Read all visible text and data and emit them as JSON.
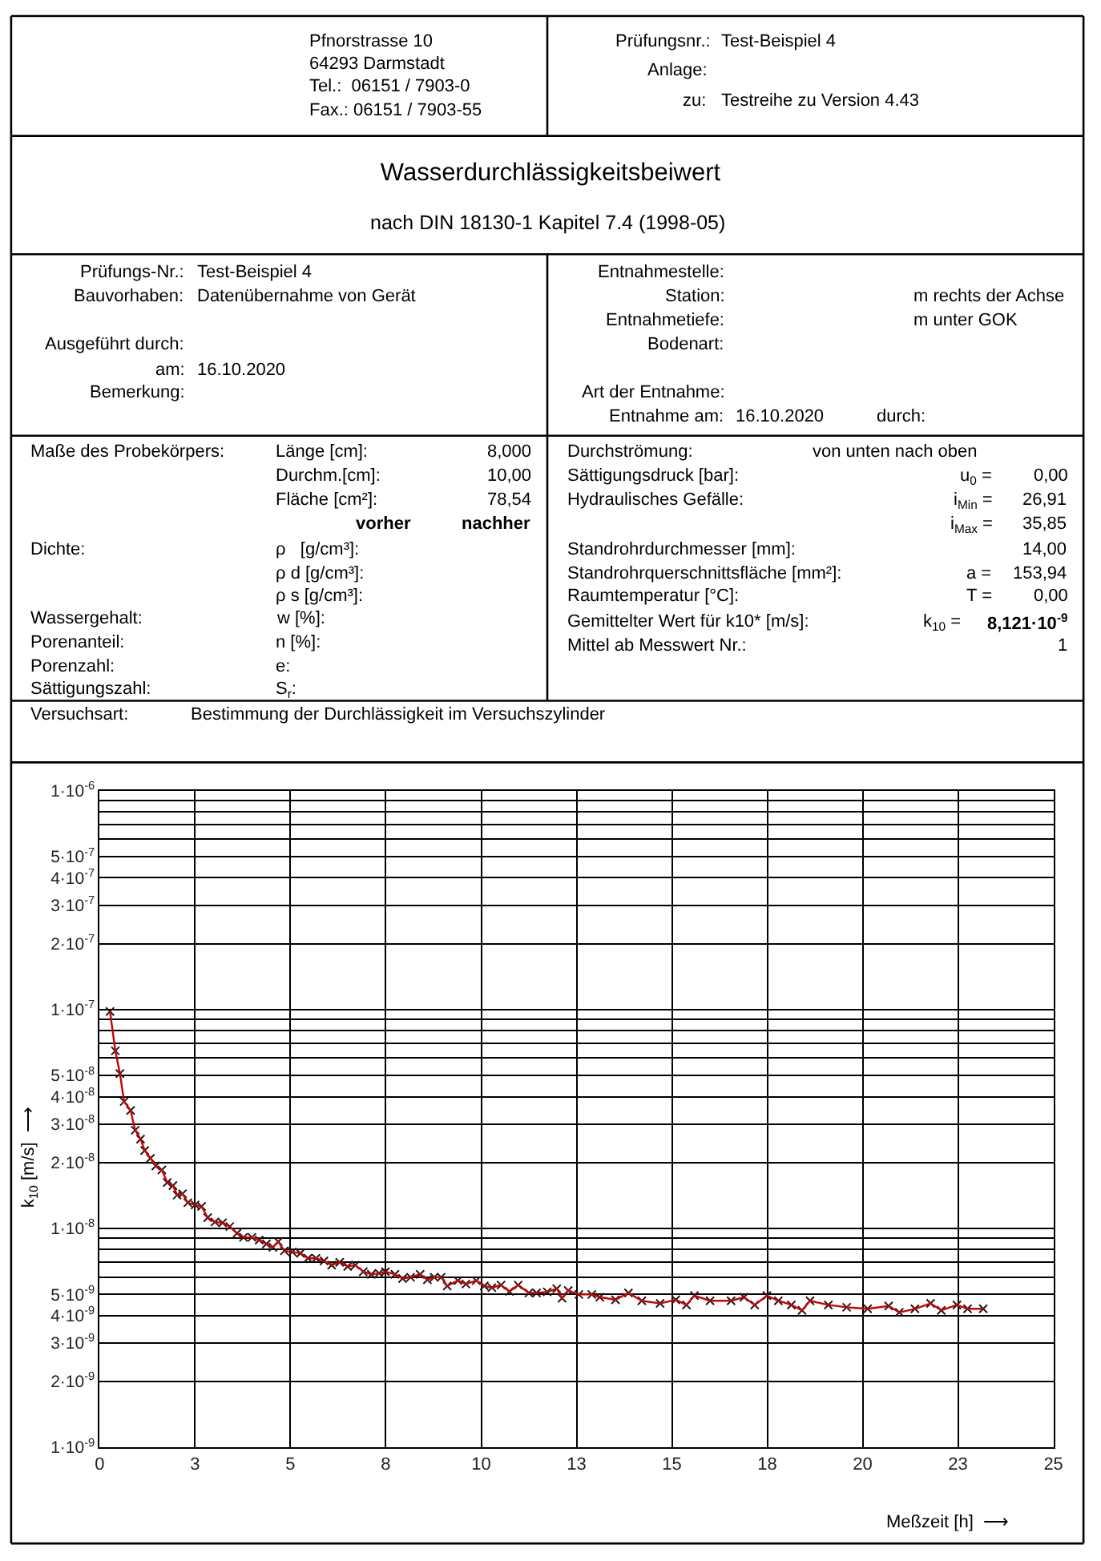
{
  "chart_data": {
    "type": "line",
    "title": "Wasserdurchlässigkeitsbeiwert",
    "subtitle": "nach DIN 18130-1 Kapitel 7.4 (1998-05)",
    "xlabel": "Meßzeit [h]  ⟶",
    "ylabel": "k$_{10}$ [m/s]  ⟶",
    "annotations": [
      "Pfnorstrasse 10",
      "64293 Darmstadt",
      "Tel.:  06151 / 7903-0",
      "Fax.: 06151 / 7903-55",
      "Prüfungsnr.:",
      "Test-Beispiel 4",
      "Anlage:",
      "zu:",
      "Testreihe zu Version 4.43",
      "Prüfungs-Nr.:",
      "Test-Beispiel 4",
      "Bauvorhaben:",
      "Datenübernahme von Gerät",
      "Ausgeführt durch:",
      "am:",
      "16.10.2020",
      "Bemerkung:",
      "Entnahmestelle:",
      "Station:",
      "m rechts der Achse",
      "Entnahmetiefe:",
      "m unter GOK",
      "Bodenart:",
      "Art der Entnahme:",
      "Entnahme am:",
      "16.10.2020",
      "durch:",
      "Maße des Probekörpers:",
      "Länge [cm]:",
      "8,000",
      "Durchm.[cm]:",
      "10,00",
      "Fläche [cm²]:",
      "78,54",
      "vorher",
      "nachher",
      "Dichte:",
      "ρ   [g/cm³]:",
      "ρ d [g/cm³]:",
      "ρ s [g/cm³]:",
      "Wassergehalt:",
      "w [%]:",
      "Porenanteil:",
      "n [%]:",
      "Porenzahl:",
      "e:",
      "Sättigungszahl:",
      "S$_{r}$:",
      "Durchströmung:",
      "von unten nach oben",
      "Sättigungsdruck [bar]:",
      "u$_{0}$ =",
      "0,00",
      "Hydraulisches Gefälle:",
      "i$_{Min}$ =",
      "26,91",
      "i$_{Max}$ =",
      "35,85",
      "Standrohrdurchmesser [mm]:",
      "14,00",
      "Standrohrquerschnittsfläche [mm²]:",
      "a =",
      "153,94",
      "Raumtemperatur [°C]:",
      "T =",
      "0,00",
      "Gemittelter Wert für k10* [m/s]:",
      "k$_{10}$ =",
      "8,121·10$^{-9}$",
      "Mittel ab Messwert Nr.:",
      "1",
      "Versuchsart:",
      "Bestimmung der Durchlässigkeit im Versuchszylinder"
    ],
    "xlim": [
      0,
      25
    ],
    "xticks": [
      0,
      {
        "value": 2.5,
        "label": "3"
      },
      5,
      {
        "value": 7.5,
        "label": "8"
      },
      10,
      {
        "value": 12.5,
        "label": "13"
      },
      15,
      {
        "value": 17.5,
        "label": "18"
      },
      20,
      {
        "value": 22.5,
        "label": "23"
      },
      25
    ],
    "ylim": [
      1e-09,
      1e-06
    ],
    "yticks": [
      {
        "value": 1e-09,
        "label": "1·10$^{-9}$"
      },
      {
        "value": 2e-09,
        "label": "2·10$^{-9}$"
      },
      {
        "value": 3e-09,
        "label": "3·10$^{-9}$"
      },
      {
        "value": 4e-09,
        "label": "4·10$^{-9}$"
      },
      {
        "value": 5e-09,
        "label": "5·10$^{-9}$"
      },
      {
        "value": 6e-09,
        "label": null
      },
      {
        "value": 7e-09,
        "label": null
      },
      {
        "value": 8e-09,
        "label": null
      },
      {
        "value": 9e-09,
        "label": null
      },
      {
        "value": 1e-08,
        "label": "1·10$^{-8}$"
      },
      {
        "value": 2e-08,
        "label": "2·10$^{-8}$"
      },
      {
        "value": 3e-08,
        "label": "3·10$^{-8}$"
      },
      {
        "value": 4e-08,
        "label": "4·10$^{-8}$"
      },
      {
        "value": 5e-08,
        "label": "5·10$^{-8}$"
      },
      {
        "value": 6e-08,
        "label": null
      },
      {
        "value": 7e-08,
        "label": null
      },
      {
        "value": 8e-08,
        "label": null
      },
      {
        "value": 9e-08,
        "label": null
      },
      {
        "value": 1e-07,
        "label": "1·10$^{-7}$"
      },
      {
        "value": 2e-07,
        "label": "2·10$^{-7}$"
      },
      {
        "value": 3e-07,
        "label": "3·10$^{-7}$"
      },
      {
        "value": 4e-07,
        "label": "4·10$^{-7}$"
      },
      {
        "value": 5e-07,
        "label": "5·10$^{-7}$"
      },
      {
        "value": 6e-07,
        "label": null
      },
      {
        "value": 7e-07,
        "label": null
      },
      {
        "value": 8e-07,
        "label": null
      },
      {
        "value": 9e-07,
        "label": null
      },
      {
        "value": 1e-06,
        "label": "1·10$^{-6}$"
      }
    ],
    "log": "y",
    "grid": true,
    "marker": "cross",
    "line_style": "solid",
    "series": [
      {
        "color": "#cc0000",
        "x": [
          0.27,
          0.41,
          0.53,
          0.64,
          0.81,
          0.93,
          1.07,
          1.18,
          1.33,
          1.47,
          1.63,
          1.77,
          1.92,
          2.03,
          2.17,
          2.31,
          2.5,
          2.67,
          2.83,
          3.02,
          3.22,
          3.41,
          3.6,
          3.77,
          3.99,
          4.18,
          4.37,
          4.54,
          4.68,
          4.84,
          5.05,
          5.26,
          5.46,
          5.67,
          5.88,
          6.08,
          6.29,
          6.5,
          6.7,
          6.91,
          7.12,
          7.32,
          7.49,
          7.74,
          7.94,
          8.15,
          8.4,
          8.59,
          8.77,
          8.95,
          9.11,
          9.39,
          9.6,
          9.87,
          10.08,
          10.28,
          10.52,
          10.74,
          10.97,
          11.25,
          11.45,
          11.73,
          11.98,
          12.12,
          12.28,
          12.56,
          12.9,
          13.11,
          13.52,
          13.86,
          14.21,
          14.69,
          15.1,
          15.38,
          15.59,
          16.0,
          16.55,
          16.89,
          17.17,
          17.49,
          17.79,
          18.13,
          18.41,
          18.62,
          19.1,
          19.58,
          20.13,
          20.68,
          20.96,
          21.37,
          21.78,
          22.06,
          22.47,
          22.75,
          23.16
        ],
        "values": [
          9.8e-08,
          6.48e-08,
          5.1e-08,
          3.8e-08,
          3.46e-08,
          2.81e-08,
          2.56e-08,
          2.27e-08,
          2.09e-08,
          1.93e-08,
          1.85e-08,
          1.62e-08,
          1.57e-08,
          1.42e-08,
          1.44e-08,
          1.31e-08,
          1.28e-08,
          1.26e-08,
          1.12e-08,
          1.07e-08,
          1.06e-08,
          1.02e-08,
          9.5e-09,
          9.1e-09,
          9.1e-09,
          8.85e-09,
          8.5e-09,
          8.2e-09,
          8.7e-09,
          7.9e-09,
          7.8e-09,
          7.7e-09,
          7.3e-09,
          7.3e-09,
          7.1e-09,
          6.8e-09,
          7e-09,
          6.7e-09,
          6.8e-09,
          6.34e-09,
          6.17e-09,
          6.24e-09,
          6.34e-09,
          6.17e-09,
          5.9e-09,
          5.98e-09,
          6.17e-09,
          5.83e-09,
          5.98e-09,
          5.98e-09,
          5.46e-09,
          5.77e-09,
          5.57e-09,
          5.77e-09,
          5.46e-09,
          5.36e-09,
          5.51e-09,
          5.15e-09,
          5.51e-09,
          5.07e-09,
          5.07e-09,
          5.13e-09,
          5.3e-09,
          4.8e-09,
          5.2e-09,
          4.99e-09,
          4.99e-09,
          4.85e-09,
          4.72e-09,
          5.07e-09,
          4.67e-09,
          4.54e-09,
          4.72e-09,
          4.47e-09,
          4.93e-09,
          4.67e-09,
          4.67e-09,
          4.85e-09,
          4.47e-09,
          4.93e-09,
          4.67e-09,
          4.47e-09,
          4.22e-09,
          4.67e-09,
          4.47e-09,
          4.36e-09,
          4.29e-09,
          4.42e-09,
          4.13e-09,
          4.29e-09,
          4.54e-09,
          4.22e-09,
          4.47e-09,
          4.29e-09,
          4.29e-09
        ],
        "colors": [
          "#1a1a1a",
          "#1a1a1a",
          "#1a1a1a",
          "#1a1a1a",
          "#1a1a1a",
          "#1a1a1a",
          "#1a1a1a",
          "#1a1a1a",
          "#1a1a1a",
          "#1a1a1a",
          "#1a1a1a",
          "#1a1a1a",
          "#1a1a1a",
          "#1a1a1a",
          "#1a1a1a",
          "#1a1a1a",
          "#1a1a1a",
          "#1a1a1a",
          "#1a1a1a",
          "#1a1a1a",
          "#1a1a1a",
          "#1a1a1a",
          "#1a1a1a",
          "#1a1a1a",
          "#1a1a1a",
          "#1a1a1a",
          "#1a1a1a",
          "#1a1a1a",
          "#1a1a1a",
          "#1a1a1a",
          "#1a1a1a",
          "#1a1a1a",
          "#1a1a1a",
          "#1a1a1a",
          "#1a1a1a",
          "#1a1a1a",
          "#1a1a1a",
          "#1a1a1a",
          "#1a1a1a",
          "#1a1a1a",
          "#1a1a1a",
          "#1a1a1a",
          "#1a1a1a",
          "#1a1a1a",
          "#1a1a1a",
          "#1a1a1a",
          "#1a1a1a",
          "#1a1a1a",
          "#1a1a1a",
          "#1a1a1a",
          "#1a1a1a",
          "#1a1a1a",
          "#1a1a1a",
          "#1a1a1a",
          "#1a1a1a",
          "#1a1a1a",
          "#1a1a1a",
          "#1a1a1a",
          "#1a1a1a",
          "#1a1a1a",
          "#1a1a1a",
          "#1a1a1a",
          "#1a1a1a",
          "#1a1a1a",
          "#1a1a1a",
          "#1a1a1a",
          "#1a1a1a",
          "#1a1a1a",
          "#1a1a1a",
          "#1a1a1a",
          "#1a1a1a",
          "#1a1a1a",
          "#1a1a1a",
          "#1a1a1a",
          "#1a1a1a",
          "#1a1a1a",
          "#1a1a1a",
          "#1a1a1a",
          "#1a1a1a",
          "#1a1a1a",
          "#1a1a1a",
          "#1a1a1a",
          "#1a1a1a",
          "#1a1a1a",
          "#1a1a1a",
          "#1a1a1a",
          "#1a1a1a",
          "#1a1a1a",
          "#1a1a1a",
          "#1a1a1a",
          "#1a1a1a",
          "#1a1a1a",
          "#1a1a1a",
          "#1a1a1a",
          "#1a1a1a"
        ]
      }
    ]
  }
}
